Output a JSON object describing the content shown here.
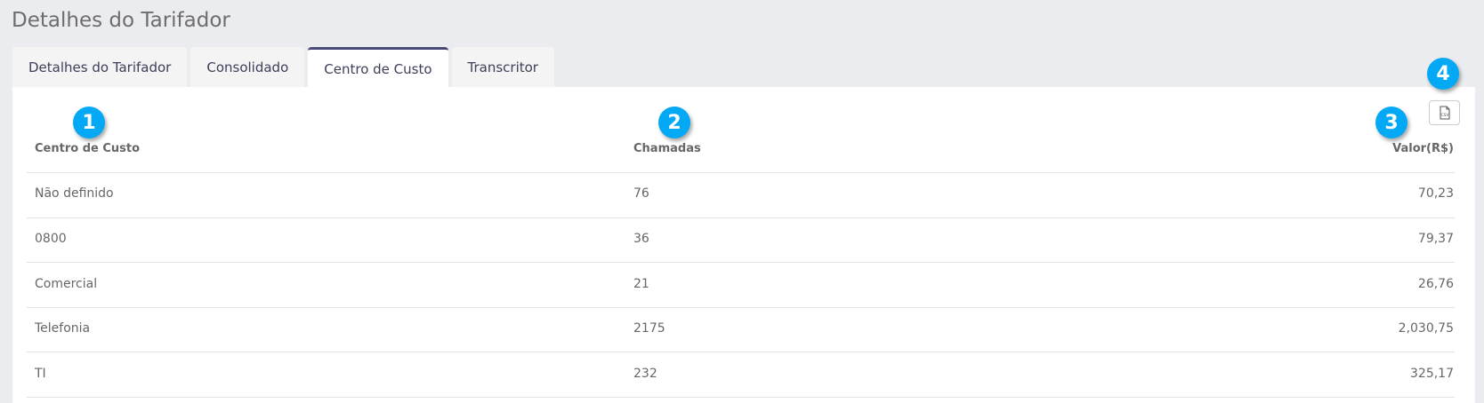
{
  "page": {
    "title": "Detalhes do Tarifador"
  },
  "tabs": [
    {
      "label": "Detalhes do Tarifador"
    },
    {
      "label": "Consolidado"
    },
    {
      "label": "Centro de Custo",
      "active": true
    },
    {
      "label": "Transcritor"
    }
  ],
  "table": {
    "headers": [
      "Centro de Custo",
      "Chamadas",
      "Valor(R$)"
    ],
    "rows": [
      [
        "Não definido",
        "76",
        "70,23"
      ],
      [
        "0800",
        "36",
        "79,37"
      ],
      [
        "Comercial",
        "21",
        "26,76"
      ],
      [
        "Telefonia",
        "2175",
        "2,030,75"
      ],
      [
        "TI",
        "232",
        "325,17"
      ]
    ]
  },
  "export": {
    "icon": "csv-file-icon"
  },
  "badges": [
    "1",
    "2",
    "3",
    "4"
  ],
  "colors": {
    "badge": "#03a9f4",
    "active_tab_border": "#4a4a78"
  }
}
